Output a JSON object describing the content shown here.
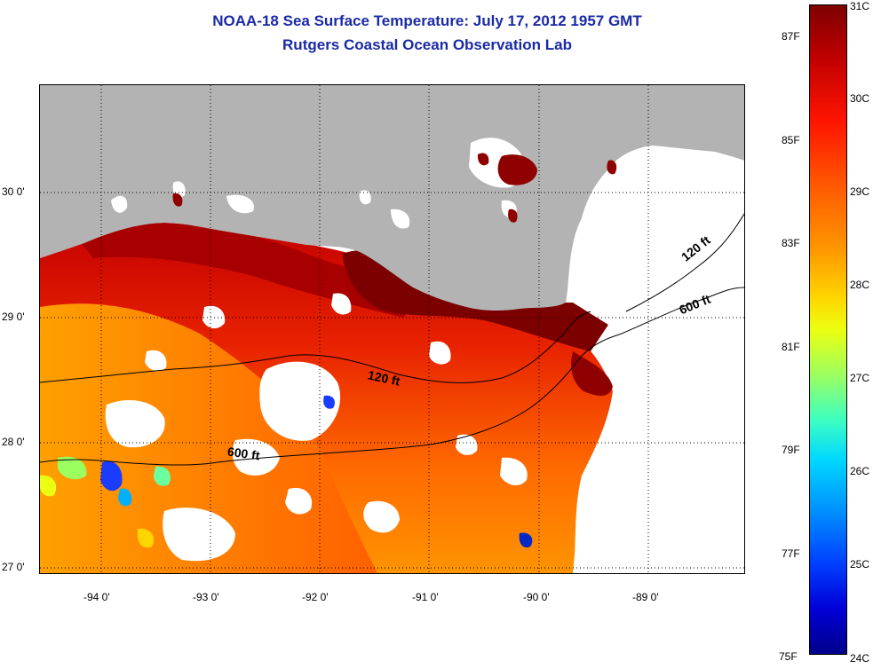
{
  "title": "NOAA-18 Sea Surface Temperature:  July 17, 2012 1957 GMT",
  "subtitle": "Rutgers Coastal Ocean Observation Lab",
  "map": {
    "lat_ticks": [
      "30 0'",
      "29 0'",
      "28 0'",
      "27 0'"
    ],
    "lon_ticks": [
      "-94 0'",
      "-93 0'",
      "-92 0'",
      "-91 0'",
      "-90 0'",
      "-89 0'"
    ],
    "contours": {
      "inner_left": "120 ft",
      "inner_right": "120 ft",
      "outer_left": "600 ft",
      "outer_right": "600 ft"
    },
    "colors": {
      "land": "#b3b3b3",
      "no_data": "#ffffff",
      "coastal_max": "#7d0000",
      "nearshore": "#d90d00",
      "offshore": "#ff8c00"
    }
  },
  "colorbar": {
    "celsius_labels": [
      "31C",
      "30C",
      "29C",
      "28C",
      "27C",
      "26C",
      "25C",
      "24C"
    ],
    "fahrenheit_labels": [
      "87F",
      "85F",
      "83F",
      "81F",
      "79F",
      "77F",
      "75F"
    ],
    "range_c": [
      24,
      31
    ]
  }
}
